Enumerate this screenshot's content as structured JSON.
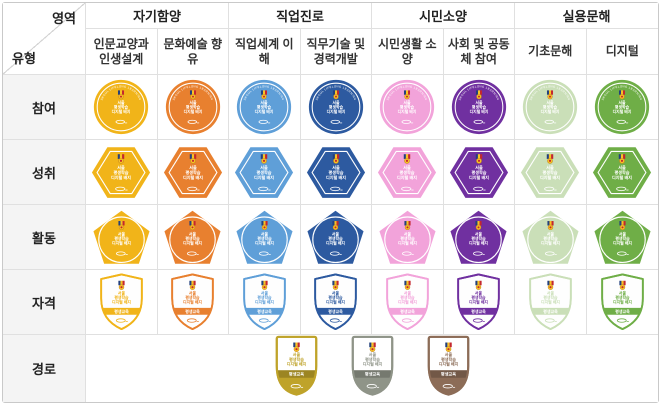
{
  "corner": {
    "top_label": "영역",
    "bottom_label": "유형"
  },
  "areas": [
    {
      "label": "자기함양"
    },
    {
      "label": "직업진로"
    },
    {
      "label": "시민소양"
    },
    {
      "label": "실용문해"
    }
  ],
  "types": [
    {
      "label": "인문교양과 인생설계",
      "color": "#F1B419"
    },
    {
      "label": "문화예술 향유",
      "color": "#E8802F"
    },
    {
      "label": "직업세계 이해",
      "color": "#5F9FD8"
    },
    {
      "label": "직무기술 및 경력개발",
      "color": "#2D5AA0"
    },
    {
      "label": "시민생활 소양",
      "color": "#F2A3DA"
    },
    {
      "label": "사회 및 공동체 참여",
      "color": "#7030A0"
    },
    {
      "label": "기초문해",
      "color": "#CADFB8"
    },
    {
      "label": "디지털",
      "color": "#6FAE47"
    }
  ],
  "rows": [
    {
      "label": "참여",
      "shape": "circle"
    },
    {
      "label": "성취",
      "shape": "hexagon"
    },
    {
      "label": "활동",
      "shape": "pentagon"
    },
    {
      "label": "자격",
      "shape": "shield"
    }
  ],
  "path_row": {
    "label": "경로",
    "shape": "arch",
    "levels": [
      {
        "name": "gold",
        "color": "#BFA32A"
      },
      {
        "name": "silver",
        "color": "#8F9488"
      },
      {
        "name": "bronze",
        "color": "#8C6C57"
      }
    ]
  },
  "badge": {
    "arc_text": "SEOUL LIFELONG LEARNING",
    "lines": [
      "서울",
      "평생학습",
      "디지털 배지"
    ],
    "band_text": "평생교육",
    "medal_colors": {
      "ribbon_left": "#24407C",
      "ribbon_mid": "#F7C325",
      "ribbon_right": "#C4272E",
      "disc": "#F7C325",
      "disc_center": "#C4272E"
    }
  }
}
